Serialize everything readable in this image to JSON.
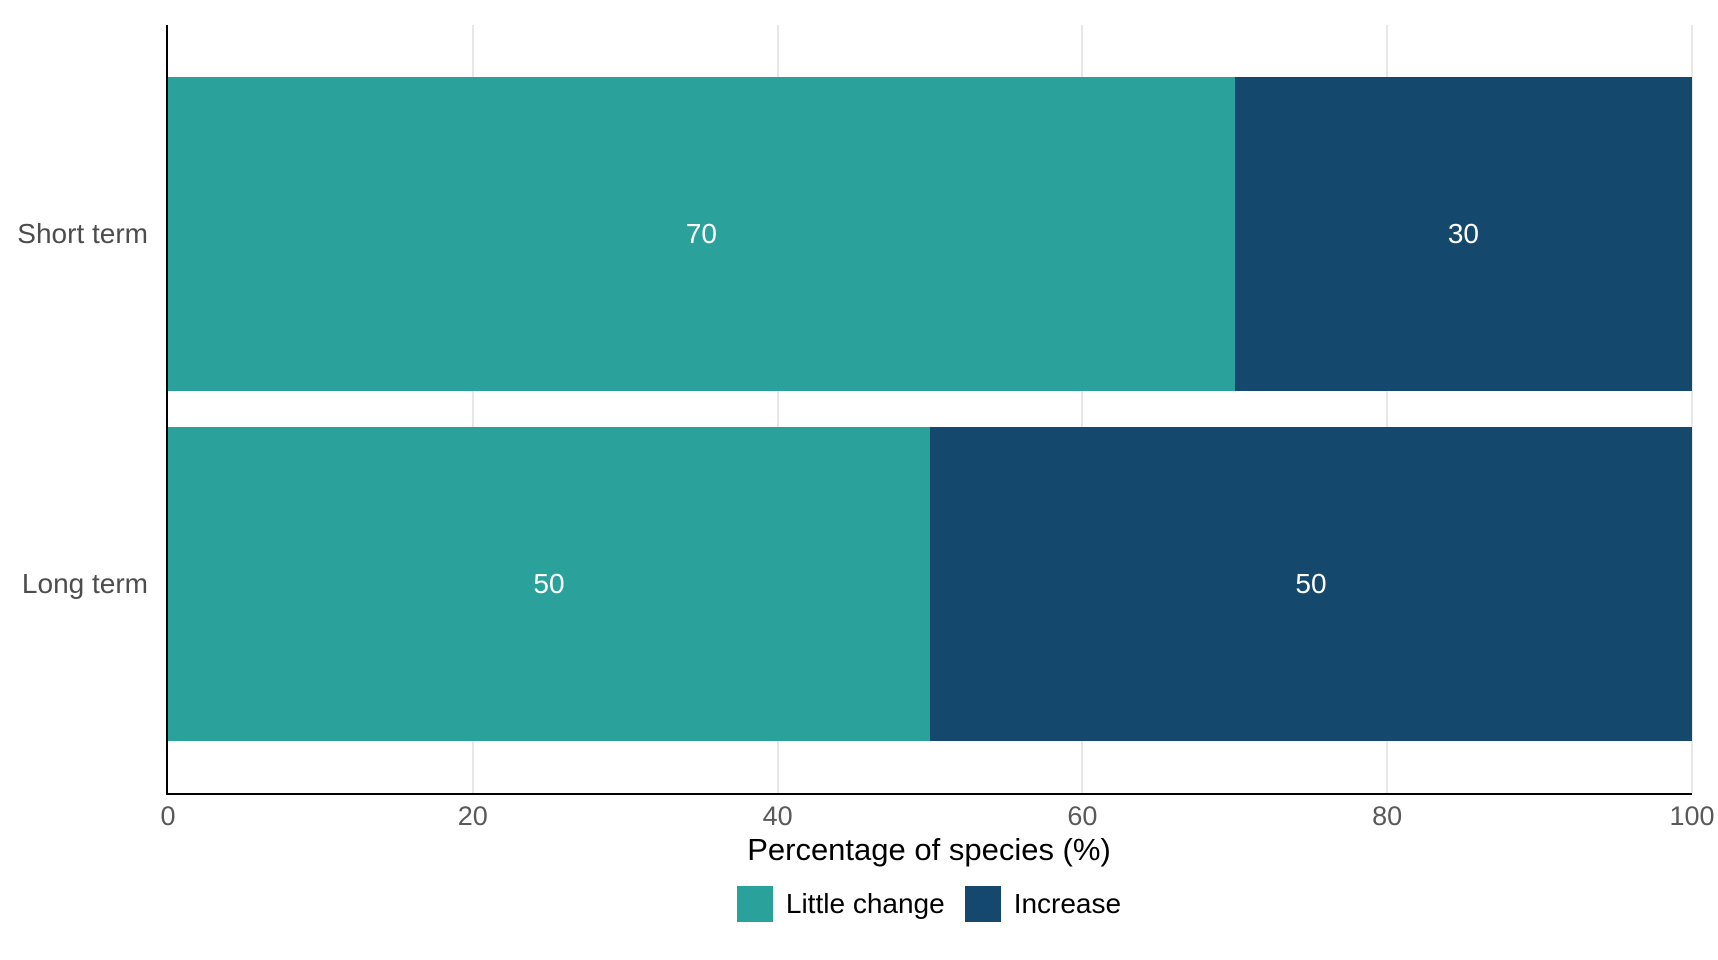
{
  "chart_data": {
    "type": "bar",
    "orientation": "horizontal",
    "stacked": true,
    "categories": [
      "Short term",
      "Long term"
    ],
    "series": [
      {
        "name": "Little change",
        "color": "#2aa19a",
        "values": [
          70,
          50
        ]
      },
      {
        "name": "Increase",
        "color": "#15486d",
        "values": [
          30,
          50
        ]
      }
    ],
    "xlabel": "Percentage of species (%)",
    "xlim": [
      0,
      100
    ],
    "x_ticks": [
      0,
      20,
      40,
      60,
      80,
      100
    ],
    "grid": "vertical",
    "legend_position": "bottom",
    "bar_labels_shown": true,
    "colors": {
      "gridline": "#e7e7e7",
      "axis_line": "#000000",
      "tick_label": "#595959",
      "category_label": "#4d4d4d",
      "value_label": "#ffffff",
      "axis_title": "#000000",
      "background": "#ffffff"
    }
  }
}
